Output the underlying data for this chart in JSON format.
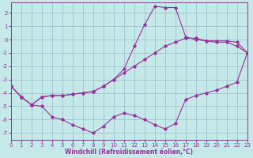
{
  "xlabel": "Windchill (Refroidissement éolien,°C)",
  "bg_color": "#c5e8e8",
  "grid_color": "#99bbcc",
  "line_color": "#993399",
  "xlim": [
    0,
    23
  ],
  "ylim": [
    -7.5,
    2.8
  ],
  "xticks": [
    0,
    1,
    2,
    3,
    4,
    5,
    6,
    7,
    8,
    9,
    10,
    11,
    12,
    13,
    14,
    15,
    16,
    17,
    18,
    19,
    20,
    21,
    22,
    23
  ],
  "yticks": [
    -7,
    -6,
    -5,
    -4,
    -3,
    -2,
    -1,
    0,
    1,
    2
  ],
  "hours": [
    0,
    1,
    2,
    3,
    4,
    5,
    6,
    7,
    8,
    9,
    10,
    11,
    12,
    13,
    14,
    15,
    16,
    17,
    18,
    19,
    20,
    21,
    22,
    23
  ],
  "curve1": [
    -3.5,
    -4.3,
    -4.9,
    -4.3,
    -4.2,
    -4.2,
    -4.1,
    -4.0,
    -3.9,
    -3.5,
    -3.0,
    -2.5,
    -2.0,
    -1.5,
    -1.0,
    -0.5,
    -0.2,
    0.1,
    0.1,
    -0.1,
    -0.2,
    -0.2,
    -0.5,
    -1.0
  ],
  "curve2": [
    -3.5,
    -4.3,
    -4.9,
    -4.3,
    -4.2,
    -4.2,
    -4.1,
    -4.0,
    -3.9,
    -3.5,
    -3.0,
    -2.2,
    -0.5,
    1.1,
    2.5,
    2.4,
    2.4,
    0.2,
    0.0,
    -0.1,
    -0.1,
    -0.1,
    -0.2,
    -1.0
  ],
  "curve3": [
    -3.5,
    -4.3,
    -4.9,
    -5.0,
    -5.8,
    -6.0,
    -6.4,
    -6.7,
    -7.0,
    -6.5,
    -5.8,
    -5.5,
    -5.7,
    -6.0,
    -6.4,
    -6.7,
    -6.3,
    -4.5,
    -4.2,
    -4.0,
    -3.8,
    -3.5,
    -3.2,
    -1.0
  ]
}
